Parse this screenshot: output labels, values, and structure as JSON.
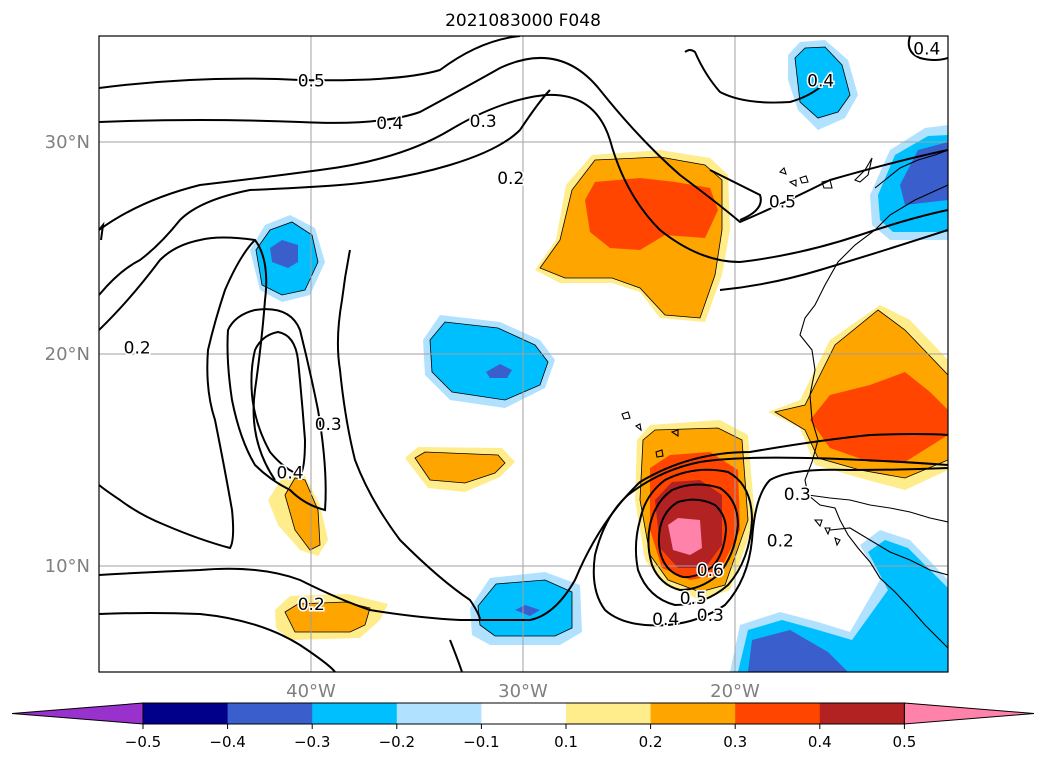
{
  "chart_data": {
    "type": "contour map",
    "title": "2021083000 F048",
    "x_axis": {
      "range": [
        "50°W",
        "10°W"
      ],
      "tick_labels": [
        "40°W",
        "30°W",
        "20°W"
      ],
      "tick_values": [
        -40,
        -30,
        -20
      ]
    },
    "y_axis": {
      "range": [
        "5°N",
        "35°N"
      ],
      "tick_labels": [
        "30°N",
        "20°N",
        "10°N"
      ],
      "tick_values": [
        30,
        20,
        10
      ]
    },
    "grid": true,
    "colorbar": {
      "location": "bottom",
      "extend": "both",
      "levels": [
        -0.5,
        -0.4,
        -0.3,
        -0.2,
        -0.1,
        0.1,
        0.2,
        0.3,
        0.4,
        0.5
      ],
      "tick_labels": [
        "−0.5",
        "−0.4",
        "−0.3",
        "−0.2",
        "−0.1",
        "0.1",
        "0.2",
        "0.3",
        "0.4",
        "0.5"
      ],
      "colors": [
        "#9932cc",
        "#00008b",
        "#3a5fcd",
        "#00bfff",
        "#b0e2ff",
        "#ffffff",
        "#ffec8b",
        "#ffa500",
        "#ff4500",
        "#b22222",
        "#ff82ab"
      ]
    },
    "contour_labels": [
      {
        "text": "0.5",
        "lon": -40.0,
        "lat": 32.9
      },
      {
        "text": "0.4",
        "lon": -36.3,
        "lat": 30.9
      },
      {
        "text": "0.3",
        "lon": -31.9,
        "lat": 31.0
      },
      {
        "text": "0.2",
        "lon": -30.6,
        "lat": 28.3
      },
      {
        "text": "0.2",
        "lon": -48.2,
        "lat": 20.3
      },
      {
        "text": "0.3",
        "lon": -39.2,
        "lat": 16.7
      },
      {
        "text": "0.4",
        "lon": -41.0,
        "lat": 14.4
      },
      {
        "text": "0.2",
        "lon": -40.0,
        "lat": 8.2
      },
      {
        "text": "0.4",
        "lon": -16.0,
        "lat": 32.9
      },
      {
        "text": "0.4",
        "lon": -11.0,
        "lat": 34.4
      },
      {
        "text": "0.5",
        "lon": -17.8,
        "lat": 27.2
      },
      {
        "text": "0.3",
        "lon": -17.1,
        "lat": 13.4
      },
      {
        "text": "0.2",
        "lon": -17.9,
        "lat": 11.2
      },
      {
        "text": "0.6",
        "lon": -21.2,
        "lat": 9.8
      },
      {
        "text": "0.5",
        "lon": -22.0,
        "lat": 8.5
      },
      {
        "text": "0.4",
        "lon": -23.3,
        "lat": 7.5
      },
      {
        "text": "0.3",
        "lon": -21.2,
        "lat": 7.7
      }
    ]
  }
}
